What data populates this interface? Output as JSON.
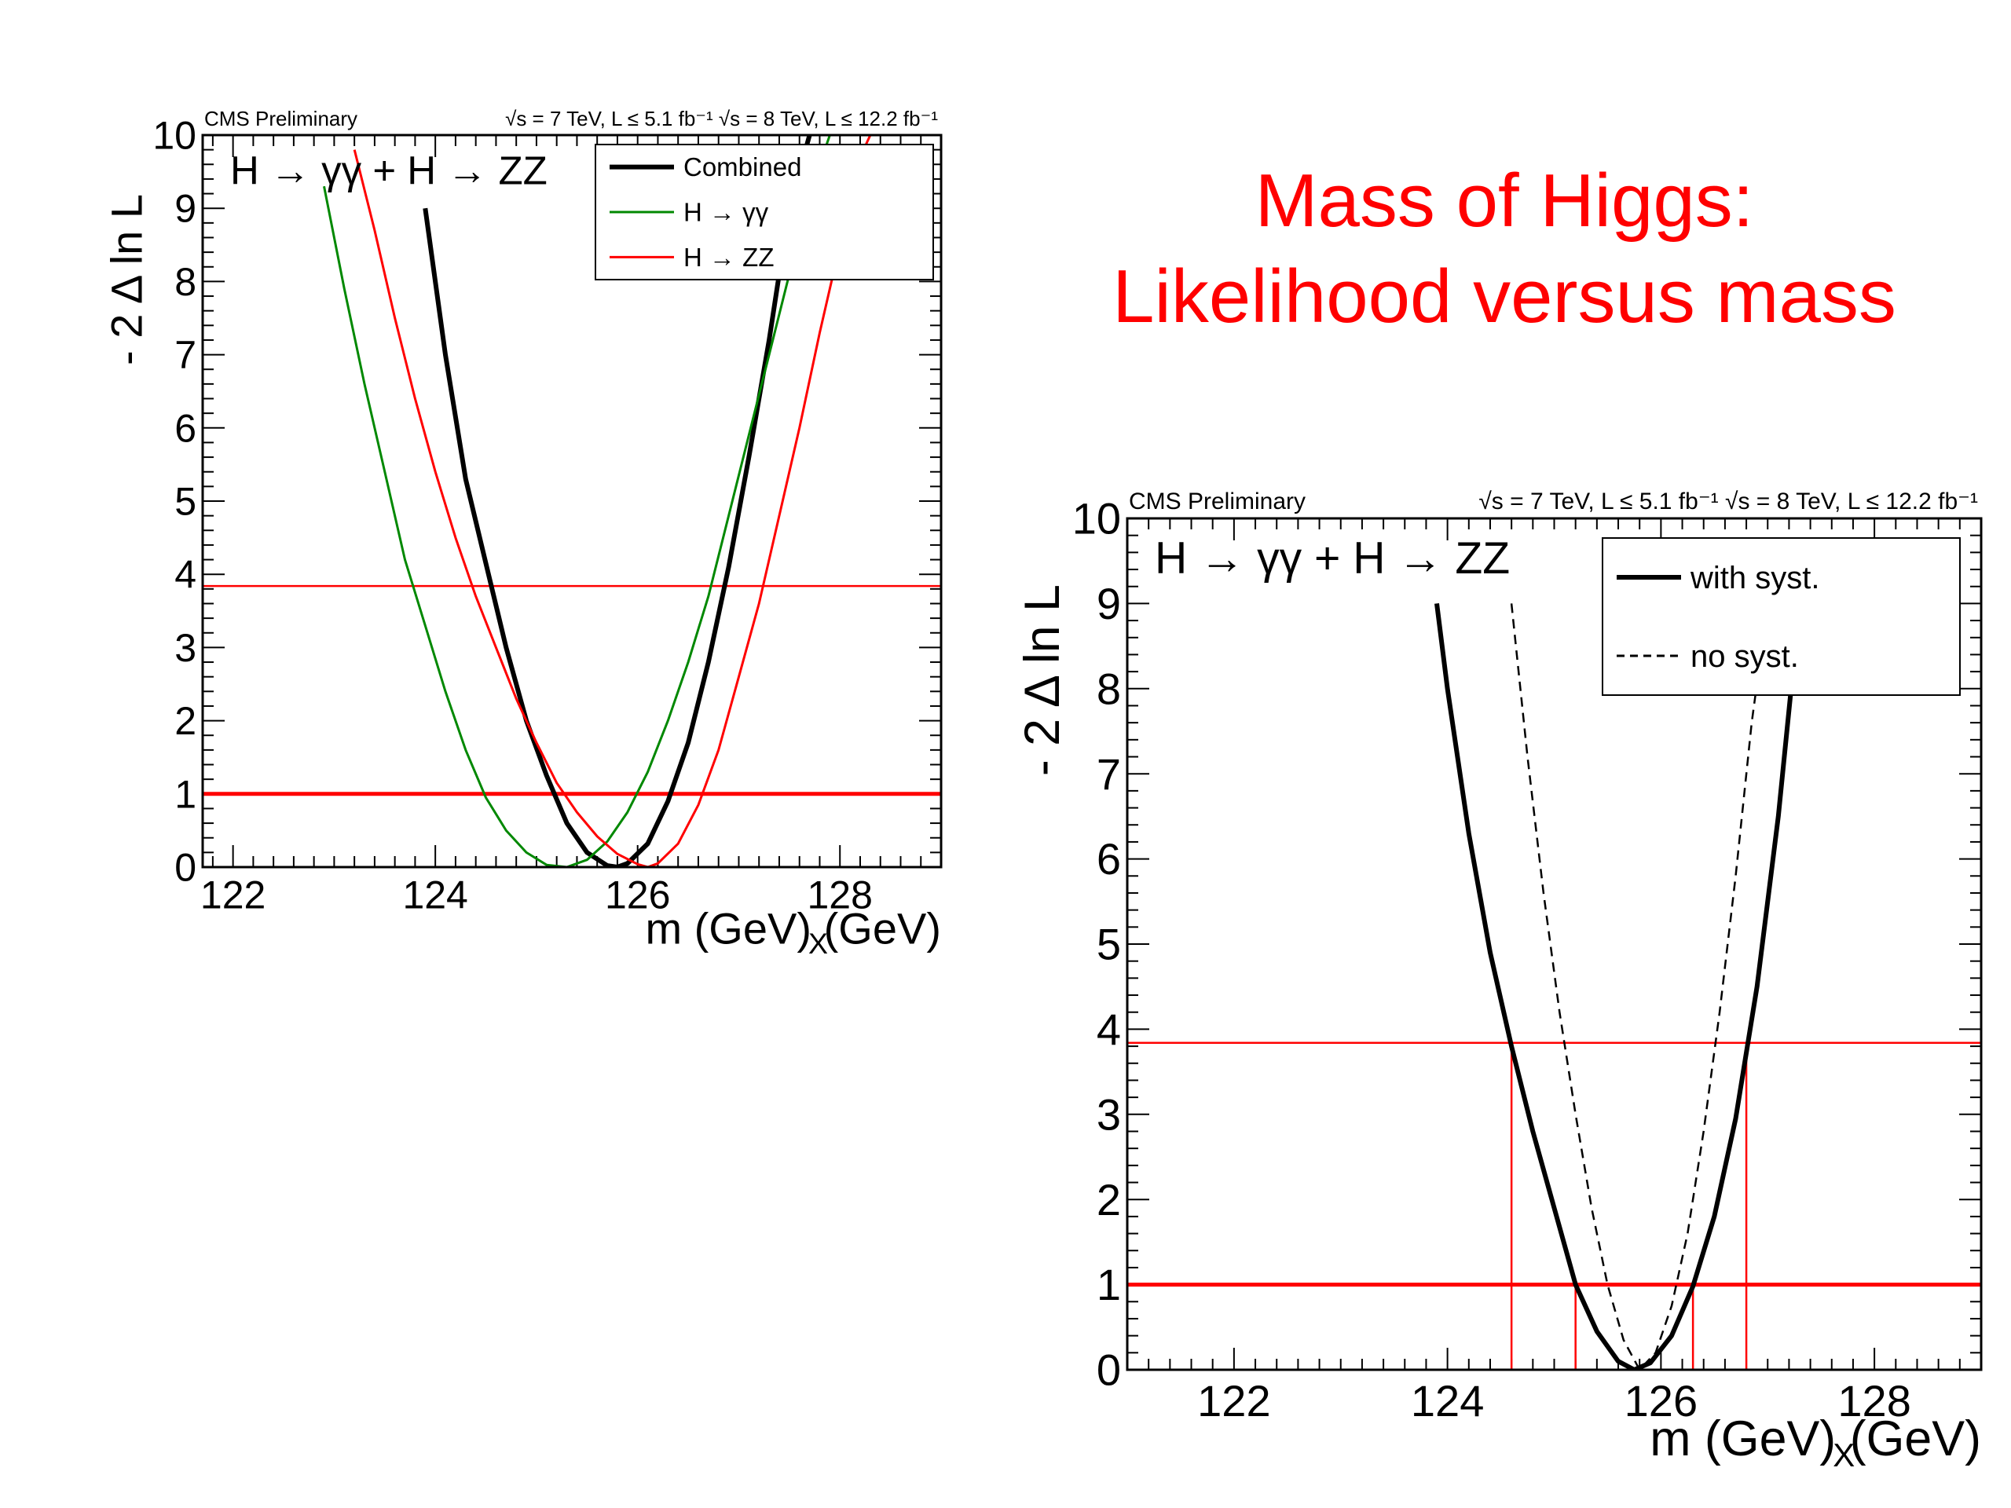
{
  "slide": {
    "title_line1": "Mass of Higgs:",
    "title_line2": "Likelihood  versus mass",
    "colors": {
      "title": "#ff0000"
    }
  },
  "chart_data": [
    {
      "type": "line",
      "header_left": "CMS Preliminary",
      "header_right": "√s = 7 TeV, L ≤ 5.1 fb⁻¹  √s = 8 TeV, L ≤ 12.2 fb⁻¹",
      "annotation": "H → γγ + H → ZZ",
      "xlabel": "m_X (GeV)",
      "ylabel": "- 2 Δ ln L",
      "xlim": [
        121.7,
        129.0
      ],
      "ylim": [
        0,
        10
      ],
      "x_ticks": [
        122,
        124,
        126,
        128
      ],
      "y_ticks": [
        0,
        1,
        2,
        3,
        4,
        5,
        6,
        7,
        8,
        9,
        10
      ],
      "legend_placement": "top-right",
      "grid": false,
      "series": [
        {
          "name": "Combined",
          "color": "#000000",
          "style": "solid",
          "x": [
            123.9,
            124.1,
            124.3,
            124.5,
            124.7,
            124.9,
            125.1,
            125.3,
            125.5,
            125.7,
            125.8,
            125.9,
            126.1,
            126.3,
            126.5,
            126.7,
            126.9,
            127.1,
            127.3,
            127.5,
            127.7
          ],
          "y": [
            9.0,
            7.0,
            5.3,
            4.15,
            3.0,
            2.0,
            1.25,
            0.6,
            0.2,
            0.02,
            0.0,
            0.05,
            0.32,
            0.9,
            1.7,
            2.8,
            4.1,
            5.6,
            7.2,
            9.0,
            10.0
          ]
        },
        {
          "name": "H → γγ",
          "color": "#008800",
          "style": "solid",
          "x": [
            122.9,
            123.1,
            123.3,
            123.5,
            123.7,
            123.9,
            124.1,
            124.3,
            124.5,
            124.7,
            124.9,
            125.1,
            125.3,
            125.5,
            125.7,
            125.9,
            126.1,
            126.3,
            126.5,
            126.7,
            126.9,
            127.1,
            127.3,
            127.5,
            127.7,
            127.9
          ],
          "y": [
            9.3,
            7.9,
            6.6,
            5.4,
            4.2,
            3.3,
            2.4,
            1.6,
            0.95,
            0.5,
            0.2,
            0.03,
            0.0,
            0.1,
            0.35,
            0.75,
            1.3,
            2.0,
            2.8,
            3.7,
            4.8,
            5.9,
            7.0,
            8.1,
            9.2,
            10.0
          ]
        },
        {
          "name": "H → ZZ",
          "color": "#ff0000",
          "style": "solid",
          "x": [
            123.2,
            123.4,
            123.6,
            123.8,
            124.0,
            124.2,
            124.4,
            124.6,
            124.8,
            125.0,
            125.2,
            125.4,
            125.6,
            125.8,
            126.0,
            126.1,
            126.2,
            126.4,
            126.6,
            126.8,
            127.0,
            127.2,
            127.4,
            127.6,
            127.8,
            128.0,
            128.2,
            128.3
          ],
          "y": [
            9.8,
            8.7,
            7.5,
            6.4,
            5.4,
            4.5,
            3.7,
            3.0,
            2.3,
            1.7,
            1.15,
            0.75,
            0.42,
            0.18,
            0.04,
            0.0,
            0.05,
            0.32,
            0.85,
            1.6,
            2.6,
            3.6,
            4.8,
            6.0,
            7.3,
            8.5,
            9.7,
            10.0
          ]
        }
      ],
      "reference_lines": [
        {
          "y": 1.0,
          "color": "#ff0000",
          "style": "thick"
        },
        {
          "y": 3.84,
          "color": "#ff0000",
          "style": "thin"
        }
      ],
      "vertical_lines": []
    },
    {
      "type": "line",
      "header_left": "CMS Preliminary",
      "header_right": "√s = 7 TeV, L ≤ 5.1 fb⁻¹  √s = 8 TeV, L ≤ 12.2 fb⁻¹",
      "annotation": "H → γγ + H → ZZ",
      "xlabel": "m_X (GeV)",
      "ylabel": "- 2 Δ ln L",
      "xlim": [
        121.0,
        129.0
      ],
      "ylim": [
        0,
        10
      ],
      "x_ticks": [
        122,
        124,
        126,
        128
      ],
      "y_ticks": [
        0,
        1,
        2,
        3,
        4,
        5,
        6,
        7,
        8,
        9,
        10
      ],
      "legend_placement": "top-right",
      "grid": false,
      "series": [
        {
          "name": "with syst.",
          "color": "#000000",
          "style": "solid",
          "x": [
            123.9,
            124.0,
            124.2,
            124.4,
            124.6,
            124.8,
            125.0,
            125.2,
            125.4,
            125.6,
            125.75,
            125.9,
            126.1,
            126.3,
            126.5,
            126.7,
            126.9,
            127.1,
            127.3
          ],
          "y": [
            9.0,
            8.0,
            6.3,
            4.9,
            3.8,
            2.8,
            1.9,
            1.0,
            0.45,
            0.1,
            0.0,
            0.08,
            0.4,
            0.98,
            1.8,
            2.95,
            4.5,
            6.5,
            9.0
          ]
        },
        {
          "name": "no syst.",
          "color": "#000000",
          "style": "dashed",
          "x": [
            124.6,
            124.75,
            124.9,
            125.05,
            125.2,
            125.35,
            125.5,
            125.65,
            125.8,
            125.95,
            126.1,
            126.25,
            126.4,
            126.55,
            126.7,
            126.85,
            127.0
          ],
          "y": [
            9.0,
            7.2,
            5.6,
            4.2,
            3.0,
            1.9,
            1.0,
            0.35,
            0.0,
            0.2,
            0.75,
            1.6,
            2.8,
            4.2,
            5.8,
            7.6,
            9.0
          ]
        }
      ],
      "reference_lines": [
        {
          "y": 1.0,
          "color": "#ff0000",
          "style": "thick"
        },
        {
          "y": 3.84,
          "color": "#ff0000",
          "style": "thin"
        }
      ],
      "vertical_lines": [
        {
          "x": 124.6,
          "y_top": 3.84,
          "color": "#ff0000"
        },
        {
          "x": 125.2,
          "y_top": 1.0,
          "color": "#ff0000"
        },
        {
          "x": 126.3,
          "y_top": 1.0,
          "color": "#ff0000"
        },
        {
          "x": 126.8,
          "y_top": 3.84,
          "color": "#ff0000"
        }
      ]
    }
  ]
}
